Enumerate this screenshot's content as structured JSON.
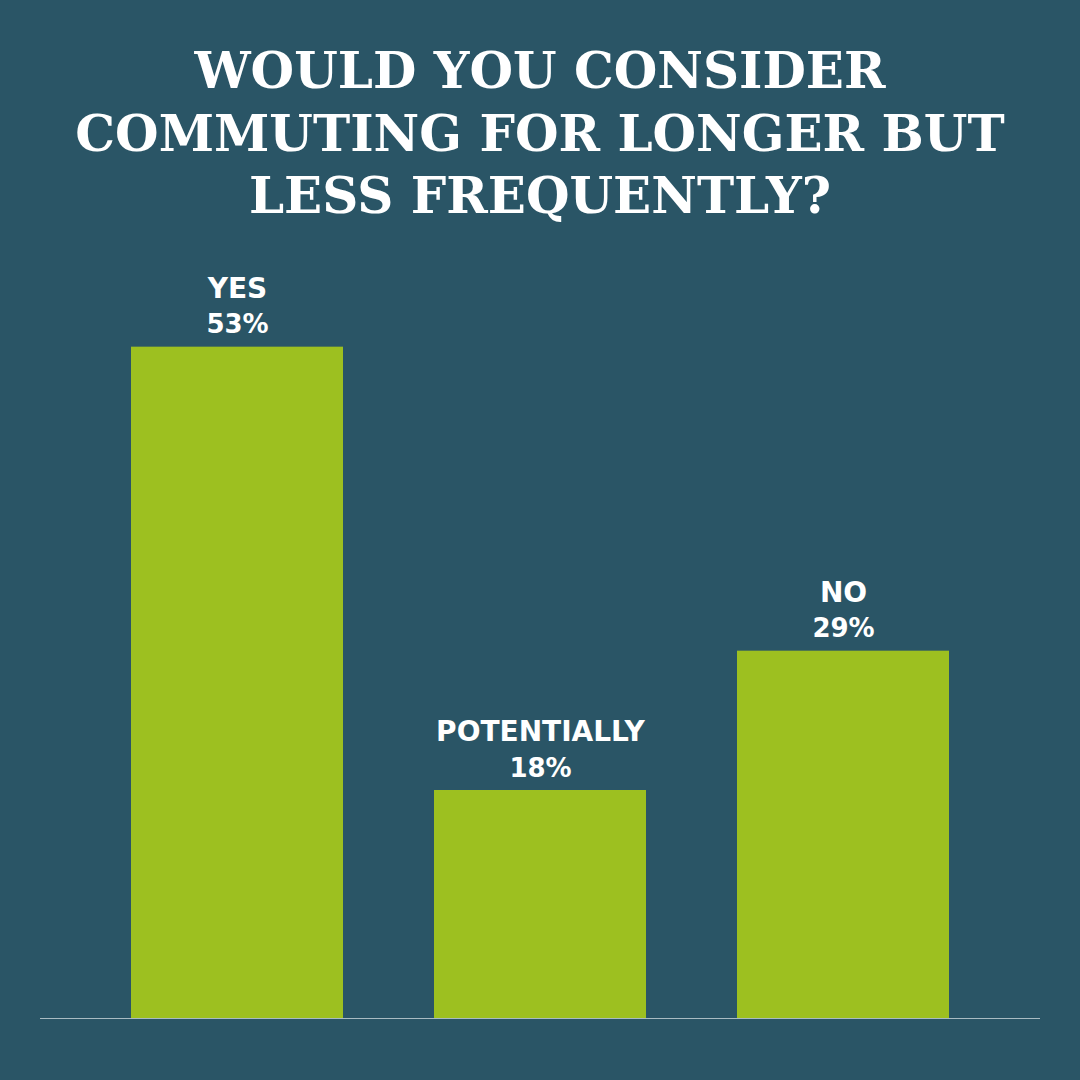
{
  "chart_data": {
    "type": "bar",
    "title": "WOULD YOU CONSIDER\nCOMMUTING FOR LONGER BUT\nLESS FREQUENTLY?",
    "categories": [
      "YES",
      "POTENTIALLY",
      "NO"
    ],
    "values": [
      53,
      18,
      29
    ],
    "value_labels": [
      "53%",
      "18%",
      "29%"
    ],
    "data_labels": true,
    "color": "#9DC020",
    "ylim": [
      0,
      60
    ],
    "tick_labels": false,
    "grid": false
  }
}
